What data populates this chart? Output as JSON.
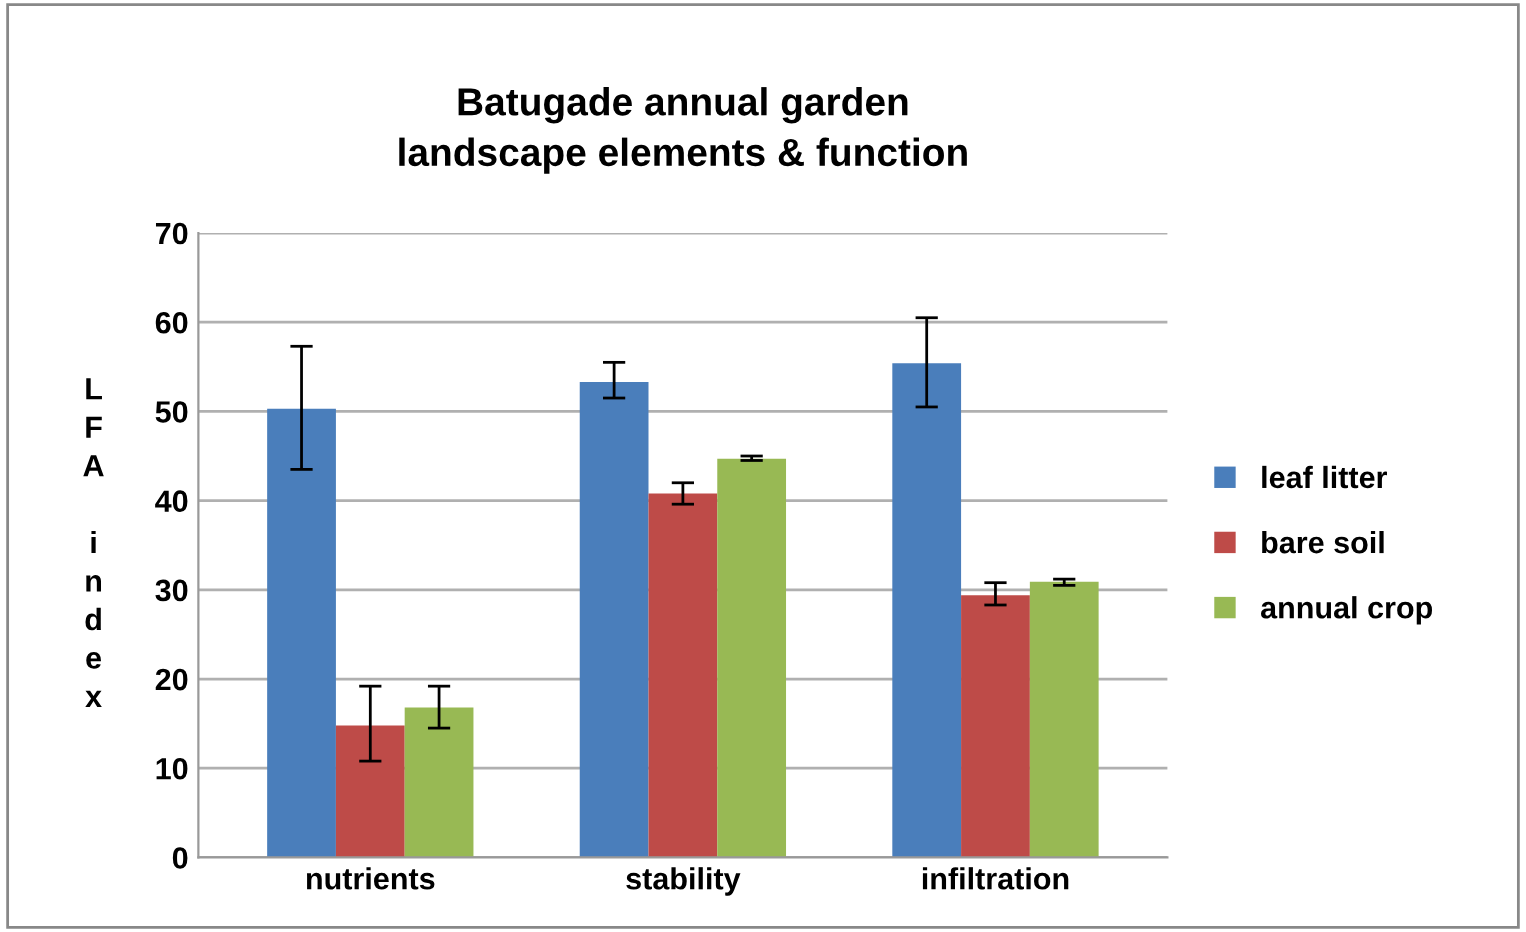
{
  "chart_data": {
    "type": "bar",
    "title": "Batugade annual garden\nlandscape elements & function",
    "ylabel": "LFA index",
    "categories": [
      "nutrients",
      "stability",
      "infiltration"
    ],
    "series": [
      {
        "name": "leaf litter",
        "color": "#4a7ebb",
        "values": [
          50.3,
          53.3,
          55.4
        ],
        "errors": [
          [
            43.5,
            57.3
          ],
          [
            51.5,
            55.5
          ],
          [
            50.5,
            60.5
          ]
        ]
      },
      {
        "name": "bare soil",
        "color": "#be4b48",
        "values": [
          14.8,
          40.8,
          29.4
        ],
        "errors": [
          [
            10.8,
            19.2
          ],
          [
            39.6,
            42.0
          ],
          [
            28.3,
            30.8
          ]
        ]
      },
      {
        "name": "annual crop",
        "color": "#98b954",
        "values": [
          16.8,
          44.7,
          30.9
        ],
        "errors": [
          [
            14.5,
            19.2
          ],
          [
            44.5,
            45.0
          ],
          [
            30.5,
            31.2
          ]
        ]
      }
    ],
    "ylim": [
      0,
      70
    ],
    "yticks": [
      0,
      10,
      20,
      30,
      40,
      50,
      60,
      70
    ],
    "grid": "y",
    "legend": "right"
  }
}
